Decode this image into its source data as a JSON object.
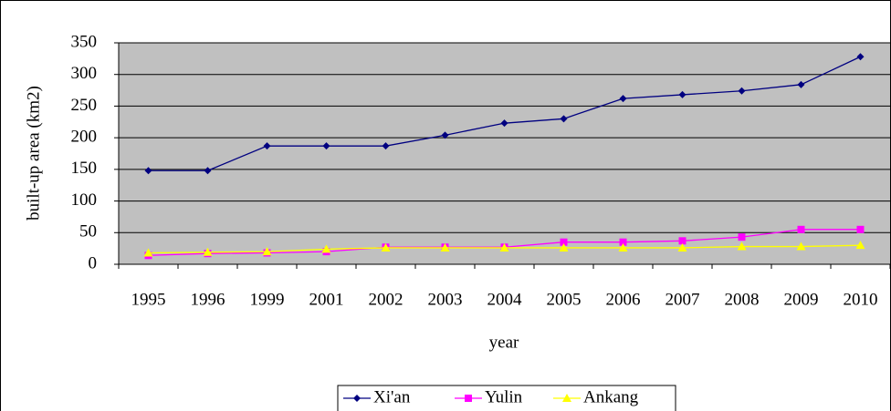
{
  "chart_data": {
    "type": "line",
    "x_label": "year",
    "y_label": "built-up area (km2)",
    "categories": [
      "1995",
      "1996",
      "1999",
      "2001",
      "2002",
      "2003",
      "2004",
      "2005",
      "2006",
      "2007",
      "2008",
      "2009",
      "2010"
    ],
    "series": [
      {
        "name": "Xi'an",
        "color": "#000080",
        "marker": "diamond",
        "values": [
          148,
          148,
          187,
          187,
          187,
          204,
          223,
          230,
          262,
          268,
          274,
          284,
          328
        ]
      },
      {
        "name": "Yulin",
        "color": "#ff00ff",
        "marker": "square",
        "values": [
          14,
          17,
          18,
          20,
          27,
          27,
          27,
          35,
          35,
          37,
          43,
          55,
          55
        ]
      },
      {
        "name": "Ankang",
        "color": "#ffff00",
        "marker": "triangle",
        "values": [
          18,
          19,
          20,
          24,
          26,
          26,
          26,
          26,
          26,
          26,
          28,
          28,
          30
        ]
      }
    ],
    "ylim": [
      0,
      350
    ],
    "yticks": [
      0,
      50,
      100,
      150,
      200,
      250,
      300,
      350
    ],
    "grid": true,
    "legend": "bottom"
  }
}
